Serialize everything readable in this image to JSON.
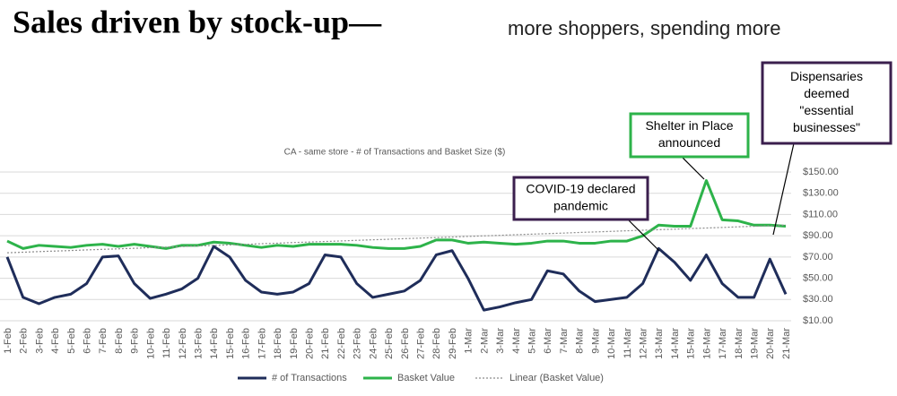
{
  "chart_data": {
    "type": "line",
    "title": "Sales driven by stock-up—",
    "subtitle": "more shoppers, spending more",
    "chart_title": "CA - same store - # of Transactions and Basket Size ($)",
    "categories": [
      "1-Feb",
      "2-Feb",
      "3-Feb",
      "4-Feb",
      "5-Feb",
      "6-Feb",
      "7-Feb",
      "8-Feb",
      "9-Feb",
      "10-Feb",
      "11-Feb",
      "12-Feb",
      "13-Feb",
      "14-Feb",
      "15-Feb",
      "16-Feb",
      "17-Feb",
      "18-Feb",
      "19-Feb",
      "20-Feb",
      "21-Feb",
      "22-Feb",
      "23-Feb",
      "24-Feb",
      "25-Feb",
      "26-Feb",
      "27-Feb",
      "28-Feb",
      "29-Feb",
      "1-Mar",
      "2-Mar",
      "3-Mar",
      "4-Mar",
      "5-Mar",
      "6-Mar",
      "7-Mar",
      "8-Mar",
      "9-Mar",
      "10-Mar",
      "11-Mar",
      "12-Mar",
      "13-Mar",
      "14-Mar",
      "15-Mar",
      "16-Mar",
      "17-Mar",
      "18-Mar",
      "19-Mar",
      "20-Mar",
      "21-Mar"
    ],
    "series": [
      {
        "name": "# of Transactions",
        "color": "#1f2d5a",
        "style": "solid",
        "values": [
          70,
          32,
          26,
          32,
          35,
          45,
          70,
          71,
          45,
          31,
          35,
          40,
          50,
          80,
          70,
          48,
          37,
          35,
          37,
          45,
          72,
          70,
          45,
          32,
          35,
          38,
          48,
          72,
          76,
          50,
          20,
          23,
          27,
          30,
          57,
          54,
          38,
          28,
          30,
          32,
          45,
          78,
          65,
          48,
          72,
          45,
          32,
          32,
          68,
          35
        ]
      },
      {
        "name": "Basket Value",
        "color": "#2db34a",
        "style": "solid",
        "values": [
          85,
          78,
          81,
          80,
          79,
          81,
          82,
          80,
          82,
          80,
          78,
          81,
          81,
          84,
          83,
          81,
          79,
          81,
          80,
          82,
          82,
          82,
          81,
          79,
          78,
          78,
          80,
          86,
          86,
          83,
          84,
          83,
          82,
          83,
          85,
          85,
          83,
          83,
          85,
          85,
          90,
          100,
          99,
          99,
          142,
          105,
          104,
          100,
          100,
          99
        ]
      },
      {
        "name": "Linear (Basket Value)",
        "color": "#8c8c8c",
        "style": "dotted",
        "values": [
          74.0,
          74.5,
          75.1,
          75.6,
          76.1,
          76.7,
          77.2,
          77.7,
          78.2,
          78.8,
          79.3,
          79.8,
          80.4,
          80.9,
          81.4,
          81.9,
          82.5,
          83.0,
          83.6,
          84.1,
          84.6,
          85.1,
          85.7,
          86.2,
          86.7,
          87.3,
          87.8,
          88.3,
          88.8,
          89.4,
          89.9,
          90.4,
          91.0,
          91.5,
          92.0,
          92.5,
          93.1,
          93.6,
          94.1,
          94.7,
          95.2,
          95.7,
          96.2,
          96.8,
          97.3,
          97.8,
          98.4,
          98.9,
          99.4,
          100.0
        ]
      }
    ],
    "ylim": [
      10,
      150
    ],
    "yticks": [
      {
        "value": 10,
        "label": "$10.00"
      },
      {
        "value": 30,
        "label": "$30.00"
      },
      {
        "value": 50,
        "label": "$50.00"
      },
      {
        "value": 70,
        "label": "$70.00"
      },
      {
        "value": 90,
        "label": "$90.00"
      },
      {
        "value": 110,
        "label": "$110.00"
      },
      {
        "value": 130,
        "label": "$130.00"
      },
      {
        "value": 150,
        "label": "$150.00"
      }
    ],
    "grid": true,
    "legend": "bottom",
    "annotations": [
      {
        "lines": [
          "COVID-19 declared",
          "pandemic"
        ],
        "color": "#3b1f4e"
      },
      {
        "lines": [
          "Shelter in Place",
          "announced"
        ],
        "color": "#2db34a"
      },
      {
        "lines": [
          "Dispensaries",
          "deemed",
          "\"essential",
          "businesses\""
        ],
        "color": "#3b1f4e"
      }
    ]
  }
}
